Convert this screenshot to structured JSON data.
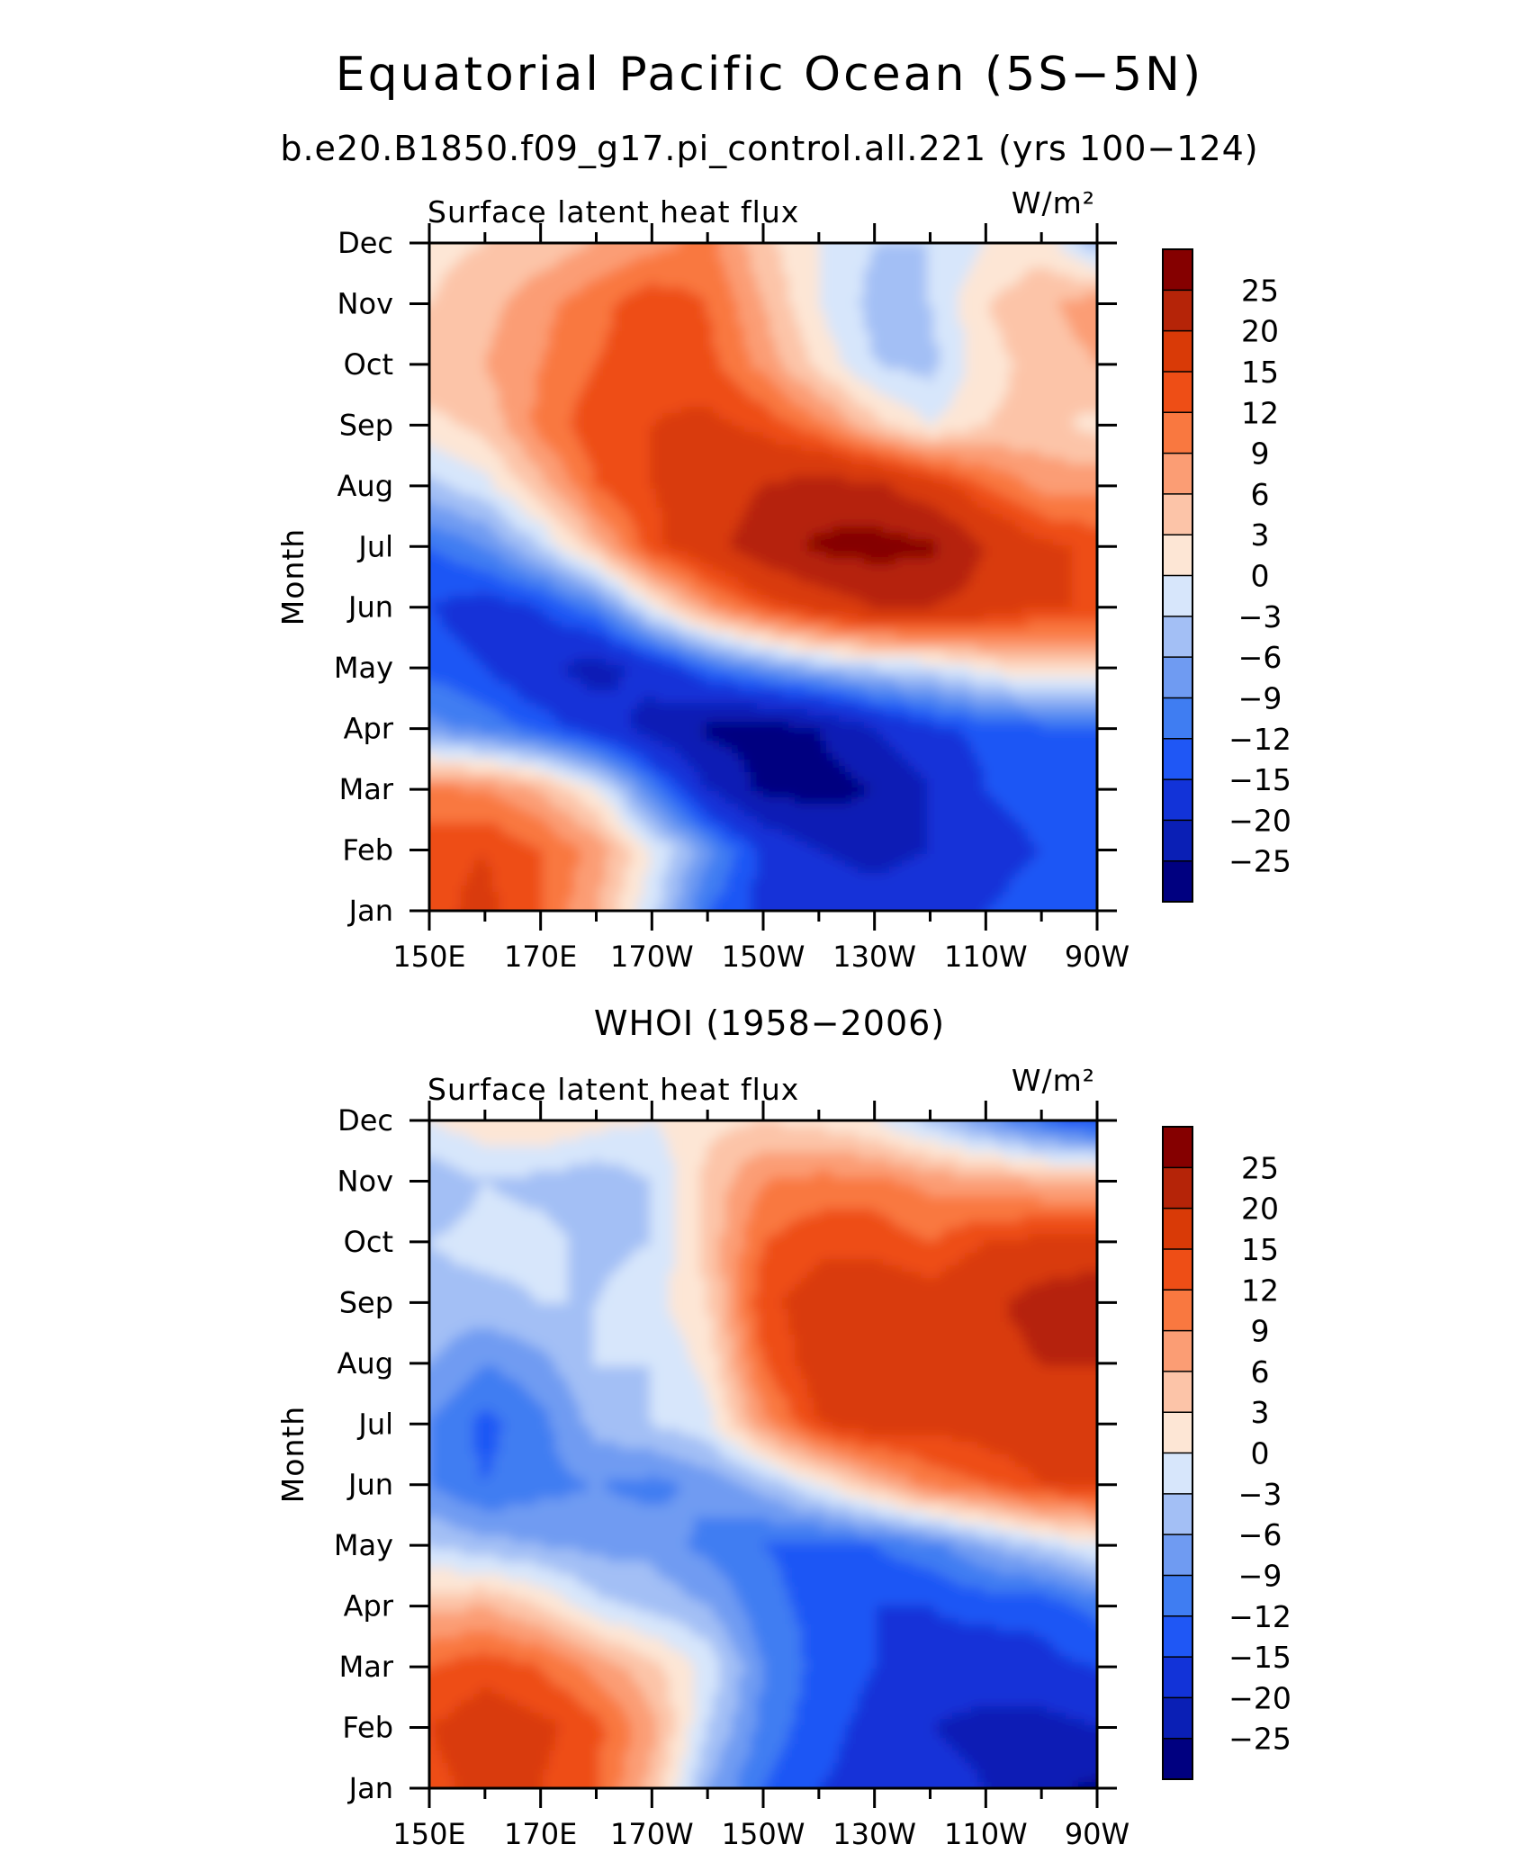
{
  "figure": {
    "title": "Equatorial Pacific Ocean (5S−5N)",
    "subtitle": "b.e20.B1850.f09_g17.pi_control.all.221 (yrs 100−124)",
    "bottom_panel_title": "WHOI (1958−2006)"
  },
  "colorbar": {
    "levels": [
      -25,
      -20,
      -15,
      -12,
      -9,
      -6,
      -3,
      0,
      3,
      6,
      9,
      12,
      15,
      20,
      25
    ],
    "tick_labels": [
      "25",
      "20",
      "15",
      "12",
      "9",
      "6",
      "3",
      "0",
      "−3",
      "−6",
      "−9",
      "−12",
      "−15",
      "−20",
      "−25"
    ],
    "colors": [
      "#000080",
      "#0a1fb5",
      "#1233d8",
      "#1f57f5",
      "#3f7df2",
      "#6f9bf2",
      "#a3bff5",
      "#d7e6fb",
      "#fde6d5",
      "#fcc4a8",
      "#fb9d74",
      "#f97840",
      "#ee4e16",
      "#d93a07",
      "#b52408",
      "#850000"
    ]
  },
  "chart_data": [
    {
      "type": "heatmap",
      "panel": "model",
      "left_label": "Surface latent heat flux",
      "right_label": "W/m²",
      "ylabel": "Month",
      "x_tick_labels": [
        "150E",
        "170E",
        "170W",
        "150W",
        "130W",
        "110W",
        "90W"
      ],
      "y_tick_labels": [
        "Jan",
        "Feb",
        "Mar",
        "Apr",
        "May",
        "Jun",
        "Jul",
        "Aug",
        "Sep",
        "Oct",
        "Nov",
        "Dec"
      ],
      "x_lon_west_deg": [
        210,
        190,
        170,
        150,
        130,
        110,
        90
      ],
      "months": [
        1,
        2,
        3,
        4,
        5,
        6,
        7,
        8,
        9,
        10,
        11,
        12
      ],
      "units": "W/m²",
      "z": [
        [
          14,
          16,
          12,
          6,
          -2,
          -12,
          -16,
          -17,
          -17,
          -16,
          -15,
          -14,
          -14
        ],
        [
          14,
          15,
          12,
          8,
          0,
          -8,
          -16,
          -20,
          -22,
          -20,
          -16,
          -15,
          -15
        ],
        [
          10,
          9,
          6,
          0,
          -10,
          -20,
          -26,
          -27,
          -25,
          -20,
          -15,
          -14,
          -14
        ],
        [
          -8,
          -10,
          -13,
          -17,
          -22,
          -26,
          -27,
          -25,
          -20,
          -16,
          -14,
          -13,
          -12
        ],
        [
          -13,
          -15,
          -19,
          -22,
          -18,
          -12,
          -8,
          -5,
          -3,
          -2,
          1,
          3,
          3
        ],
        [
          -15,
          -17,
          -15,
          -10,
          0,
          8,
          13,
          17,
          20,
          20,
          18,
          15,
          15
        ],
        [
          -12,
          -9,
          -3,
          5,
          14,
          18,
          23,
          26,
          27,
          26,
          20,
          16,
          14
        ],
        [
          -4,
          -1,
          5,
          12,
          15,
          17,
          20,
          22,
          21,
          17,
          12,
          8,
          8
        ],
        [
          2,
          4,
          10,
          14,
          15,
          16,
          14,
          10,
          4,
          0,
          3,
          4,
          2
        ],
        [
          5,
          6,
          9,
          12,
          14,
          13,
          8,
          2,
          -3,
          -4,
          2,
          4,
          6
        ],
        [
          3,
          5,
          8,
          11,
          14,
          12,
          6,
          0,
          -4,
          -3,
          3,
          5,
          8
        ],
        [
          2,
          3,
          4,
          6,
          8,
          10,
          4,
          0,
          -3,
          -3,
          0,
          2,
          -5
        ]
      ]
    },
    {
      "type": "heatmap",
      "panel": "WHOI",
      "left_label": "Surface latent heat flux",
      "right_label": "W/m²",
      "ylabel": "Month",
      "x_tick_labels": [
        "150E",
        "170E",
        "170W",
        "150W",
        "130W",
        "110W",
        "90W"
      ],
      "y_tick_labels": [
        "Jan",
        "Feb",
        "Mar",
        "Apr",
        "May",
        "Jun",
        "Jul",
        "Aug",
        "Sep",
        "Oct",
        "Nov",
        "Dec"
      ],
      "x_lon_west_deg": [
        210,
        190,
        170,
        150,
        130,
        110,
        90
      ],
      "months": [
        1,
        2,
        3,
        4,
        5,
        6,
        7,
        8,
        9,
        10,
        11,
        12
      ],
      "units": "W/m²",
      "z": [
        [
          14,
          16,
          15,
          12,
          5,
          -6,
          -12,
          -15,
          -16,
          -17,
          -20,
          -24,
          -26
        ],
        [
          15,
          17,
          16,
          13,
          7,
          -3,
          -10,
          -14,
          -16,
          -20,
          -22,
          -22,
          -20
        ],
        [
          12,
          14,
          12,
          8,
          4,
          -1,
          -9,
          -13,
          -15,
          -16,
          -17,
          -16,
          -15
        ],
        [
          5,
          6,
          3,
          -2,
          -4,
          -6,
          -11,
          -13,
          -15,
          -15,
          -14,
          -14,
          -11
        ],
        [
          -3,
          -5,
          -6,
          -7,
          -7,
          -10,
          -12,
          -13,
          -12,
          -10,
          -6,
          -3,
          0
        ],
        [
          -9,
          -12,
          -10,
          -9,
          -10,
          -8,
          -5,
          0,
          5,
          10,
          12,
          15,
          15
        ],
        [
          -9,
          -13,
          -10,
          -5,
          -3,
          -1,
          8,
          15,
          17,
          16,
          17,
          18,
          18
        ],
        [
          -6,
          -9,
          -7,
          -3,
          -3,
          1,
          12,
          17,
          20,
          16,
          18,
          20,
          20
        ],
        [
          -4,
          -4,
          -3,
          -3,
          -1,
          3,
          14,
          17,
          18,
          17,
          19,
          22,
          24
        ],
        [
          -3,
          -2,
          -2,
          -4,
          -3,
          4,
          12,
          14,
          14,
          12,
          15,
          16,
          16
        ],
        [
          -5,
          -3,
          -4,
          -5,
          -3,
          4,
          9,
          10,
          10,
          8,
          7,
          6,
          6
        ],
        [
          0,
          2,
          3,
          1,
          0,
          2,
          3,
          2,
          0,
          -4,
          -8,
          -12,
          -15
        ]
      ]
    }
  ]
}
